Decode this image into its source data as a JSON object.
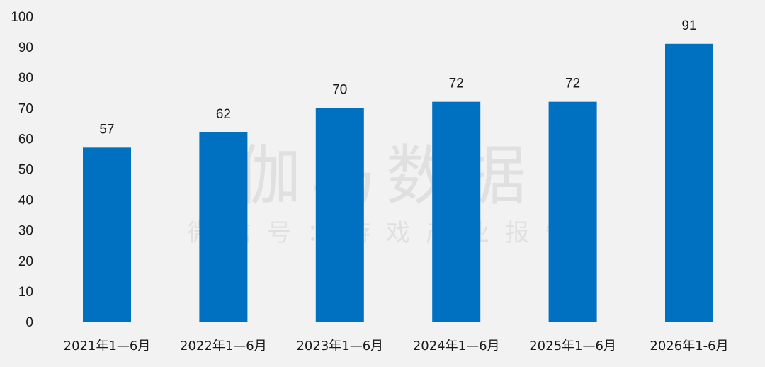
{
  "chart_data": {
    "type": "bar",
    "categories": [
      "2021年1—6月",
      "2022年1—6月",
      "2023年1—6月",
      "2024年1—6月",
      "2025年1—6月",
      "2026年1-6月"
    ],
    "values": [
      57,
      62,
      70,
      72,
      72,
      91
    ],
    "data_labels": [
      "57",
      "62",
      "70",
      "72",
      "72",
      "91"
    ],
    "title": "",
    "xlabel": "",
    "ylabel": "",
    "ylim": [
      0,
      100
    ],
    "yticks": [
      "0",
      "10",
      "20",
      "30",
      "40",
      "50",
      "60",
      "70",
      "80",
      "90",
      "100"
    ],
    "grid": false,
    "legend": "none",
    "bar_color": "#0070c0"
  },
  "watermark": {
    "main": "伽马数据",
    "sub": "微信号：游戏产业报告"
  }
}
